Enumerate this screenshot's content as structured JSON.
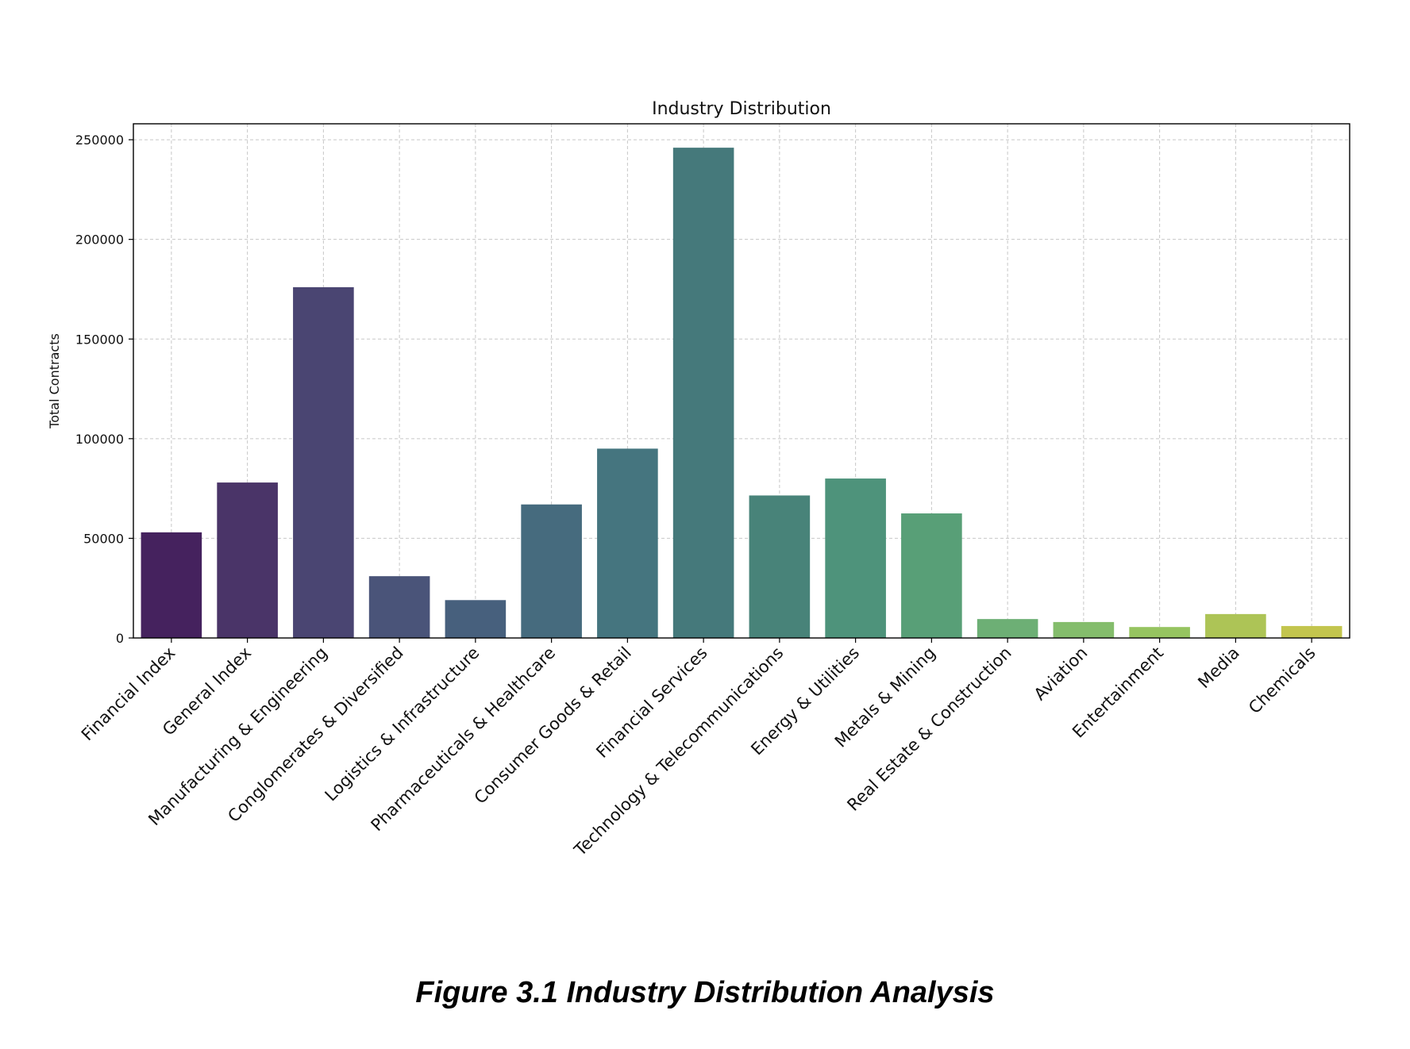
{
  "chart_data": {
    "type": "bar",
    "title": "Industry Distribution",
    "xlabel": "",
    "ylabel": "Total Contracts",
    "ylim": [
      0,
      258000
    ],
    "yticks": [
      0,
      50000,
      100000,
      150000,
      200000,
      250000
    ],
    "grid": true,
    "categories": [
      "Financial Index",
      "General Index",
      "Manufacturing & Engineering",
      "Conglomerates & Diversified",
      "Logistics & Infrastructure",
      "Pharmaceuticals & Healthcare",
      "Consumer Goods & Retail",
      "Financial Services",
      "Technology & Telecommunications",
      "Energy & Utilities",
      "Metals & Mining",
      "Real Estate & Construction",
      "Aviation",
      "Entertainment",
      "Media",
      "Chemicals"
    ],
    "values": [
      53000,
      78000,
      176000,
      31000,
      19000,
      67000,
      95000,
      246000,
      71500,
      80000,
      62500,
      9500,
      8000,
      5500,
      12000,
      6000
    ],
    "colors": [
      "#45225e",
      "#4a3468",
      "#4a4572",
      "#4a5479",
      "#47607d",
      "#466b7e",
      "#45757f",
      "#45797b",
      "#488379",
      "#4e937b",
      "#589f77",
      "#6daf75",
      "#84bd6c",
      "#96c460",
      "#adc456",
      "#c3c54e"
    ]
  },
  "caption": "Figure 3.1 Industry Distribution Analysis"
}
